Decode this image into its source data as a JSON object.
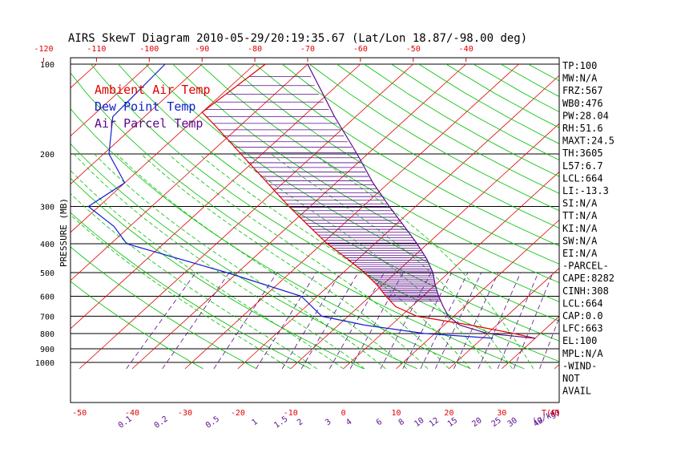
{
  "chart_data": {
    "type": "line",
    "title": "AIRS SkewT Diagram 2010-05-29/20:19:35.67 (Lat/Lon 18.87/-98.00 deg)",
    "ylabel": "PRESSURE (MB)",
    "xlabel_bottom_right": "T(C)",
    "mixing_ratio_unit": "(g/kg)",
    "y_scale": "log",
    "ylim": [
      1050,
      100
    ],
    "pressure_levels": [
      100,
      200,
      300,
      400,
      500,
      600,
      700,
      800,
      900,
      1000
    ],
    "top_temperature_ticks": [
      -120,
      -110,
      -100,
      -90,
      -80,
      -70,
      -60,
      -50,
      -40
    ],
    "bottom_temperature_ticks": [
      -50,
      -40,
      -30,
      -20,
      -10,
      0,
      10,
      20,
      30,
      40
    ],
    "mixing_ratio_ticks": [
      "0.1",
      "0.2",
      "0.5",
      "1",
      "1.5",
      "2",
      "3",
      "4",
      "6",
      "8",
      "10",
      "12",
      "15",
      "20",
      "25",
      "30",
      "40"
    ],
    "legend": [
      {
        "label": "Ambient Air Temp",
        "color": "#e00000"
      },
      {
        "label": "Dew Point Temp",
        "color": "#1020d0"
      },
      {
        "label": "Air Parcel Temp",
        "color": "#5a0a8c"
      }
    ],
    "colors": {
      "isotherm": "#e00000",
      "dry_adiabat": "#00c000",
      "moist_adiabat": "#00c000",
      "mixing_ratio": "#5a0a8c",
      "ambient": "#e00000",
      "dewpoint": "#1020d0",
      "parcel": "#5a0a8c",
      "cape_hatch": "#5a0a8c",
      "isobar": "#000000"
    },
    "series": [
      {
        "name": "Ambient Air Temp",
        "points": [
          [
            100,
            -78
          ],
          [
            145,
            -80
          ],
          [
            160,
            -75
          ],
          [
            200,
            -64
          ],
          [
            250,
            -53
          ],
          [
            300,
            -44
          ],
          [
            350,
            -36
          ],
          [
            400,
            -29
          ],
          [
            450,
            -22
          ],
          [
            500,
            -16
          ],
          [
            550,
            -11
          ],
          [
            600,
            -7
          ],
          [
            650,
            -3
          ],
          [
            700,
            3
          ],
          [
            750,
            15
          ],
          [
            800,
            25
          ],
          [
            830,
            30
          ]
        ]
      },
      {
        "name": "Dew Point Temp",
        "points": [
          [
            100,
            -97
          ],
          [
            150,
            -96
          ],
          [
            200,
            -89
          ],
          [
            250,
            -80
          ],
          [
            300,
            -82
          ],
          [
            350,
            -73
          ],
          [
            400,
            -67
          ],
          [
            500,
            -42
          ],
          [
            600,
            -23
          ],
          [
            700,
            -15
          ],
          [
            750,
            -5
          ],
          [
            800,
            8
          ],
          [
            830,
            22
          ]
        ]
      },
      {
        "name": "Air Parcel Temp",
        "points": [
          [
            100,
            -70
          ],
          [
            150,
            -54
          ],
          [
            200,
            -42
          ],
          [
            250,
            -33
          ],
          [
            300,
            -25
          ],
          [
            350,
            -18
          ],
          [
            400,
            -12
          ],
          [
            450,
            -7
          ],
          [
            500,
            -3
          ],
          [
            550,
            0
          ],
          [
            600,
            3
          ],
          [
            650,
            6
          ],
          [
            700,
            9
          ],
          [
            750,
            13
          ],
          [
            800,
            20
          ],
          [
            830,
            30
          ]
        ]
      }
    ],
    "indices": [
      "TP:100",
      "MW:N/A",
      "FRZ:567",
      "WB0:476",
      "PW:28.04",
      "RH:51.6",
      "MAXT:24.5",
      "TH:3605",
      "L57:6.7",
      "LCL:664",
      "LI:-13.3",
      "SI:N/A",
      "TT:N/A",
      "KI:N/A",
      "SW:N/A",
      "EI:N/A",
      "-PARCEL-",
      "CAPE:8282",
      "CINH:308",
      "LCL:664",
      "CAP:0.0",
      "LFC:663",
      "EL:100",
      "MPL:N/A",
      "-WIND-",
      "NOT",
      "AVAIL"
    ]
  }
}
